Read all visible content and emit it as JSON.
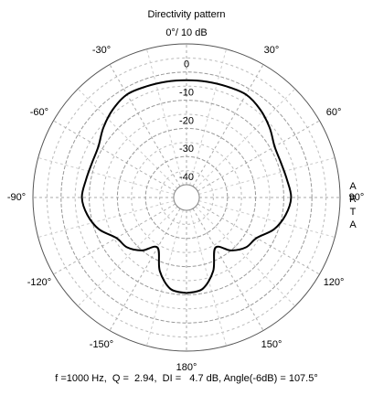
{
  "chart_data": {
    "type": "polar",
    "title": "Directivity pattern",
    "x": [
      -180,
      -170,
      -160,
      -150,
      -140,
      -130,
      -120,
      -110,
      -100,
      -90,
      -80,
      -70,
      -60,
      -50,
      -40,
      -30,
      -20,
      -10,
      0,
      10,
      20,
      30,
      40,
      50,
      60,
      70,
      80,
      90,
      100,
      110,
      120,
      130,
      140,
      150,
      160,
      170,
      180
    ],
    "series": [
      {
        "color": "#000000",
        "values": [
          -10.6,
          -11.6,
          -16.8,
          -24,
          -20,
          -17,
          -15.8,
          -11.5,
          -8.8,
          -7.4,
          -8.3,
          -8.8,
          -8.4,
          -6,
          -3.8,
          -2.3,
          -2.6,
          -2.8,
          -2.9,
          -2.8,
          -2.6,
          -2.3,
          -3.8,
          -6,
          -8.4,
          -8.8,
          -8.3,
          -7.4,
          -8.8,
          -11.5,
          -15.8,
          -17,
          -20,
          -24,
          -16.8,
          -11.6,
          -10.6
        ]
      }
    ],
    "rlim": [
      -40,
      10
    ],
    "rticks": [
      0,
      -10,
      -20,
      -30,
      -40
    ],
    "xticks": [
      {
        "value": 0,
        "label": "0°/ 10 dB"
      },
      {
        "value": 30,
        "label": "30°"
      },
      {
        "value": 60,
        "label": "60°"
      },
      {
        "value": 90,
        "label": "90°"
      },
      {
        "value": 120,
        "label": "120°"
      },
      {
        "value": 150,
        "label": "150°"
      },
      {
        "value": 180,
        "label": "180°"
      },
      {
        "value": -150,
        "label": "-150°"
      },
      {
        "value": -120,
        "label": "-120°"
      },
      {
        "value": -90,
        "label": "-90°"
      },
      {
        "value": -60,
        "label": "-60°"
      },
      {
        "value": -30,
        "label": "-30°"
      }
    ],
    "annotations": [
      "ARTA",
      "f =1000 Hz,  Q =  2.94,  DI =   4.7 dB, Angle(-6dB) = 107.5°"
    ]
  }
}
